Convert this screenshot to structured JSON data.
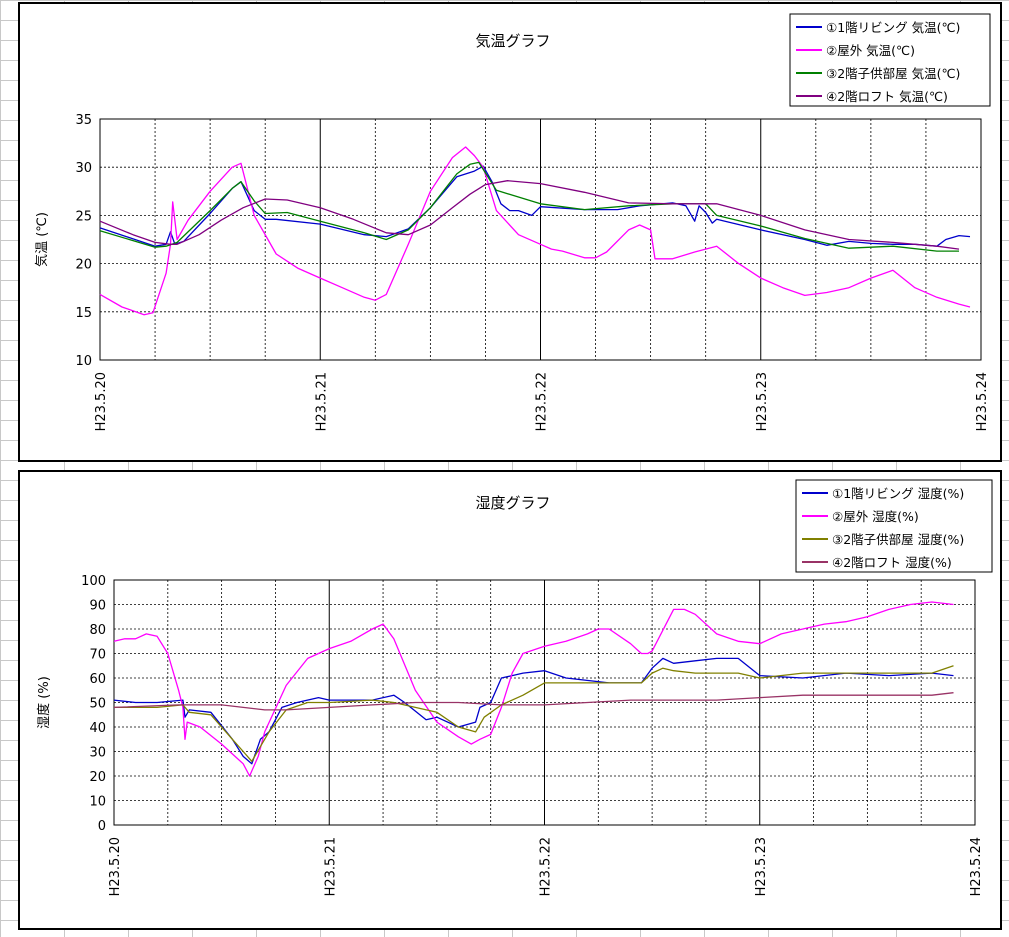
{
  "chart_data": [
    {
      "type": "line",
      "title": "気温グラフ",
      "ylabel": "気温 (℃)",
      "xlabel": "",
      "ylim": [
        10,
        35
      ],
      "yticks": [
        10,
        15,
        20,
        25,
        30,
        35
      ],
      "x_range": [
        0,
        4
      ],
      "x_tick_labels": [
        "H23.5.20",
        "H23.5.21",
        "H23.5.22",
        "H23.5.23",
        "H23.5.24"
      ],
      "grid": true,
      "legend_position": "top-right",
      "series": [
        {
          "name": "①1階リビング 気温(℃)",
          "color": "#0000cc",
          "x": [
            0,
            0.25,
            0.3,
            0.32,
            0.34,
            0.38,
            0.5,
            0.6,
            0.64,
            0.7,
            0.75,
            0.8,
            1.0,
            1.2,
            1.3,
            1.4,
            1.5,
            1.62,
            1.7,
            1.74,
            1.78,
            1.82,
            1.86,
            1.9,
            1.96,
            2.0,
            2.2,
            2.35,
            2.45,
            2.6,
            2.66,
            2.7,
            2.72,
            2.75,
            2.78,
            2.8,
            3.0,
            3.2,
            3.3,
            3.4,
            3.5,
            3.6,
            3.7,
            3.8,
            3.84,
            3.9,
            3.95
          ],
          "y": [
            23.7,
            21.8,
            22.0,
            23.3,
            22.0,
            22.3,
            25.2,
            27.8,
            28.5,
            25.5,
            24.6,
            24.6,
            24.1,
            23.0,
            22.8,
            23.6,
            25.8,
            29.0,
            29.6,
            30.1,
            28.5,
            26.2,
            25.5,
            25.5,
            25.0,
            25.9,
            25.6,
            25.6,
            26.0,
            26.3,
            26.0,
            24.4,
            26.0,
            25.3,
            24.2,
            24.6,
            23.5,
            22.5,
            21.9,
            22.3,
            22.1,
            22.0,
            22.0,
            21.8,
            22.5,
            22.9,
            22.8
          ]
        },
        {
          "name": "②屋外 気温(℃)",
          "color": "#ff00ff",
          "x": [
            0,
            0.1,
            0.2,
            0.24,
            0.3,
            0.32,
            0.33,
            0.35,
            0.4,
            0.5,
            0.6,
            0.64,
            0.7,
            0.8,
            0.9,
            1.0,
            1.1,
            1.2,
            1.25,
            1.3,
            1.4,
            1.5,
            1.6,
            1.66,
            1.7,
            1.74,
            1.8,
            1.9,
            2.0,
            2.05,
            2.1,
            2.2,
            2.25,
            2.3,
            2.4,
            2.45,
            2.5,
            2.52,
            2.6,
            2.7,
            2.8,
            2.9,
            3.0,
            3.1,
            3.2,
            3.3,
            3.4,
            3.5,
            3.6,
            3.7,
            3.8,
            3.9,
            3.95
          ],
          "y": [
            16.8,
            15.5,
            14.7,
            14.9,
            19.0,
            22.0,
            26.4,
            22.5,
            24.5,
            27.5,
            30.0,
            30.4,
            25.0,
            21.0,
            19.5,
            18.5,
            17.5,
            16.5,
            16.2,
            16.8,
            22.0,
            27.5,
            31.0,
            32.1,
            31.2,
            30.0,
            25.5,
            23.0,
            22.0,
            21.5,
            21.3,
            20.6,
            20.6,
            21.2,
            23.5,
            24.0,
            23.5,
            20.5,
            20.5,
            21.2,
            21.8,
            20.0,
            18.5,
            17.5,
            16.7,
            17.0,
            17.5,
            18.5,
            19.3,
            17.5,
            16.5,
            15.8,
            15.5
          ]
        },
        {
          "name": "③2階子供部屋 気温(℃)",
          "color": "#008000",
          "x": [
            0,
            0.25,
            0.3,
            0.35,
            0.5,
            0.6,
            0.64,
            0.7,
            0.75,
            0.85,
            1.0,
            1.2,
            1.3,
            1.4,
            1.5,
            1.62,
            1.68,
            1.72,
            1.8,
            2.0,
            2.2,
            2.4,
            2.6,
            2.75,
            2.8,
            3.0,
            3.2,
            3.4,
            3.6,
            3.8,
            3.9
          ],
          "y": [
            23.4,
            21.7,
            21.8,
            22.2,
            25.5,
            27.8,
            28.5,
            26.5,
            25.2,
            25.3,
            24.4,
            23.2,
            22.5,
            23.5,
            25.8,
            29.3,
            30.3,
            30.5,
            27.6,
            26.2,
            25.6,
            26.0,
            26.2,
            26.2,
            25.0,
            23.9,
            22.6,
            21.6,
            21.8,
            21.3,
            21.3
          ]
        },
        {
          "name": "④2階ロフト 気温(℃)",
          "color": "#800080",
          "x": [
            0,
            0.15,
            0.25,
            0.32,
            0.35,
            0.45,
            0.55,
            0.65,
            0.75,
            0.85,
            1.0,
            1.15,
            1.3,
            1.4,
            1.5,
            1.6,
            1.68,
            1.75,
            1.85,
            2.0,
            2.2,
            2.4,
            2.6,
            2.8,
            3.0,
            3.2,
            3.4,
            3.6,
            3.8,
            3.9
          ],
          "y": [
            24.4,
            23.0,
            22.2,
            22.0,
            22.0,
            23.0,
            24.5,
            25.8,
            26.7,
            26.6,
            25.8,
            24.6,
            23.2,
            23.0,
            24.0,
            25.8,
            27.2,
            28.2,
            28.6,
            28.3,
            27.4,
            26.3,
            26.2,
            26.2,
            25.0,
            23.5,
            22.5,
            22.2,
            21.8,
            21.5
          ]
        }
      ]
    },
    {
      "type": "line",
      "title": "湿度グラフ",
      "ylabel": "湿度 (%)",
      "xlabel": "",
      "ylim": [
        0,
        100
      ],
      "yticks": [
        0,
        10,
        20,
        30,
        40,
        50,
        60,
        70,
        80,
        90,
        100
      ],
      "x_range": [
        0,
        4
      ],
      "x_tick_labels": [
        "H23.5.20",
        "H23.5.21",
        "H23.5.22",
        "H23.5.23",
        "H23.5.24"
      ],
      "grid": true,
      "legend_position": "top-right",
      "series": [
        {
          "name": "①1階リビング 湿度(%)",
          "color": "#0000cc",
          "x": [
            0,
            0.1,
            0.2,
            0.32,
            0.33,
            0.35,
            0.45,
            0.55,
            0.6,
            0.64,
            0.68,
            0.72,
            0.78,
            0.85,
            0.95,
            1.0,
            1.2,
            1.3,
            1.35,
            1.45,
            1.5,
            1.6,
            1.68,
            1.7,
            1.75,
            1.8,
            1.85,
            1.9,
            2.0,
            2.1,
            2.3,
            2.45,
            2.5,
            2.55,
            2.6,
            2.7,
            2.8,
            2.9,
            3.0,
            3.2,
            3.4,
            3.6,
            3.8,
            3.9
          ],
          "y": [
            51,
            50,
            50,
            51,
            44,
            47,
            46,
            35,
            28,
            25,
            35,
            38,
            48,
            50,
            52,
            51,
            51,
            53,
            50,
            43,
            44,
            40,
            42,
            48,
            50,
            60,
            61,
            62,
            63,
            60,
            58,
            58,
            64,
            68,
            66,
            67,
            68,
            68,
            61,
            60,
            62,
            61,
            62,
            61
          ]
        },
        {
          "name": "②屋外 湿度(%)",
          "color": "#ff00ff",
          "x": [
            0,
            0.05,
            0.1,
            0.15,
            0.2,
            0.25,
            0.3,
            0.32,
            0.33,
            0.34,
            0.4,
            0.5,
            0.6,
            0.63,
            0.67,
            0.7,
            0.8,
            0.9,
            1.0,
            1.1,
            1.2,
            1.25,
            1.3,
            1.4,
            1.5,
            1.6,
            1.66,
            1.7,
            1.75,
            1.8,
            1.85,
            1.9,
            2.0,
            2.1,
            2.2,
            2.25,
            2.3,
            2.4,
            2.45,
            2.48,
            2.5,
            2.6,
            2.65,
            2.7,
            2.8,
            2.9,
            3.0,
            3.1,
            3.2,
            3.3,
            3.4,
            3.5,
            3.6,
            3.7,
            3.8,
            3.9
          ],
          "y": [
            75,
            76,
            76,
            78,
            77,
            70,
            55,
            48,
            35,
            42,
            40,
            33,
            25,
            20,
            28,
            38,
            57,
            68,
            72,
            75,
            80,
            82,
            76,
            55,
            42,
            36,
            33,
            35,
            37,
            48,
            62,
            70,
            73,
            75,
            78,
            80,
            80,
            74,
            70,
            70,
            71,
            88,
            88,
            86,
            78,
            75,
            74,
            78,
            80,
            82,
            83,
            85,
            88,
            90,
            91,
            90
          ]
        },
        {
          "name": "③2階子供部屋 湿度(%)",
          "color": "#808000",
          "x": [
            0,
            0.2,
            0.32,
            0.35,
            0.45,
            0.55,
            0.6,
            0.64,
            0.68,
            0.72,
            0.8,
            0.9,
            1.0,
            1.2,
            1.3,
            1.4,
            1.5,
            1.6,
            1.68,
            1.72,
            1.8,
            1.9,
            2.0,
            2.1,
            2.3,
            2.45,
            2.5,
            2.55,
            2.6,
            2.7,
            2.8,
            2.9,
            3.0,
            3.2,
            3.4,
            3.6,
            3.8,
            3.9
          ],
          "y": [
            48,
            48,
            49,
            46,
            45,
            35,
            30,
            26,
            32,
            38,
            47,
            50,
            50,
            51,
            50,
            48,
            46,
            40,
            38,
            44,
            49,
            53,
            58,
            58,
            58,
            58,
            62,
            64,
            63,
            62,
            62,
            62,
            60,
            62,
            62,
            62,
            62,
            65
          ]
        },
        {
          "name": "④2階ロフト 湿度(%)",
          "color": "#993366",
          "x": [
            0,
            0.3,
            0.5,
            0.6,
            0.7,
            0.8,
            1.0,
            1.2,
            1.4,
            1.6,
            1.8,
            2.0,
            2.2,
            2.4,
            2.6,
            2.8,
            3.0,
            3.2,
            3.4,
            3.6,
            3.8,
            3.9
          ],
          "y": [
            48,
            49,
            49,
            48,
            47,
            47,
            48,
            49,
            50,
            50,
            49,
            49,
            50,
            51,
            51,
            51,
            52,
            53,
            53,
            53,
            53,
            54
          ]
        }
      ]
    }
  ]
}
